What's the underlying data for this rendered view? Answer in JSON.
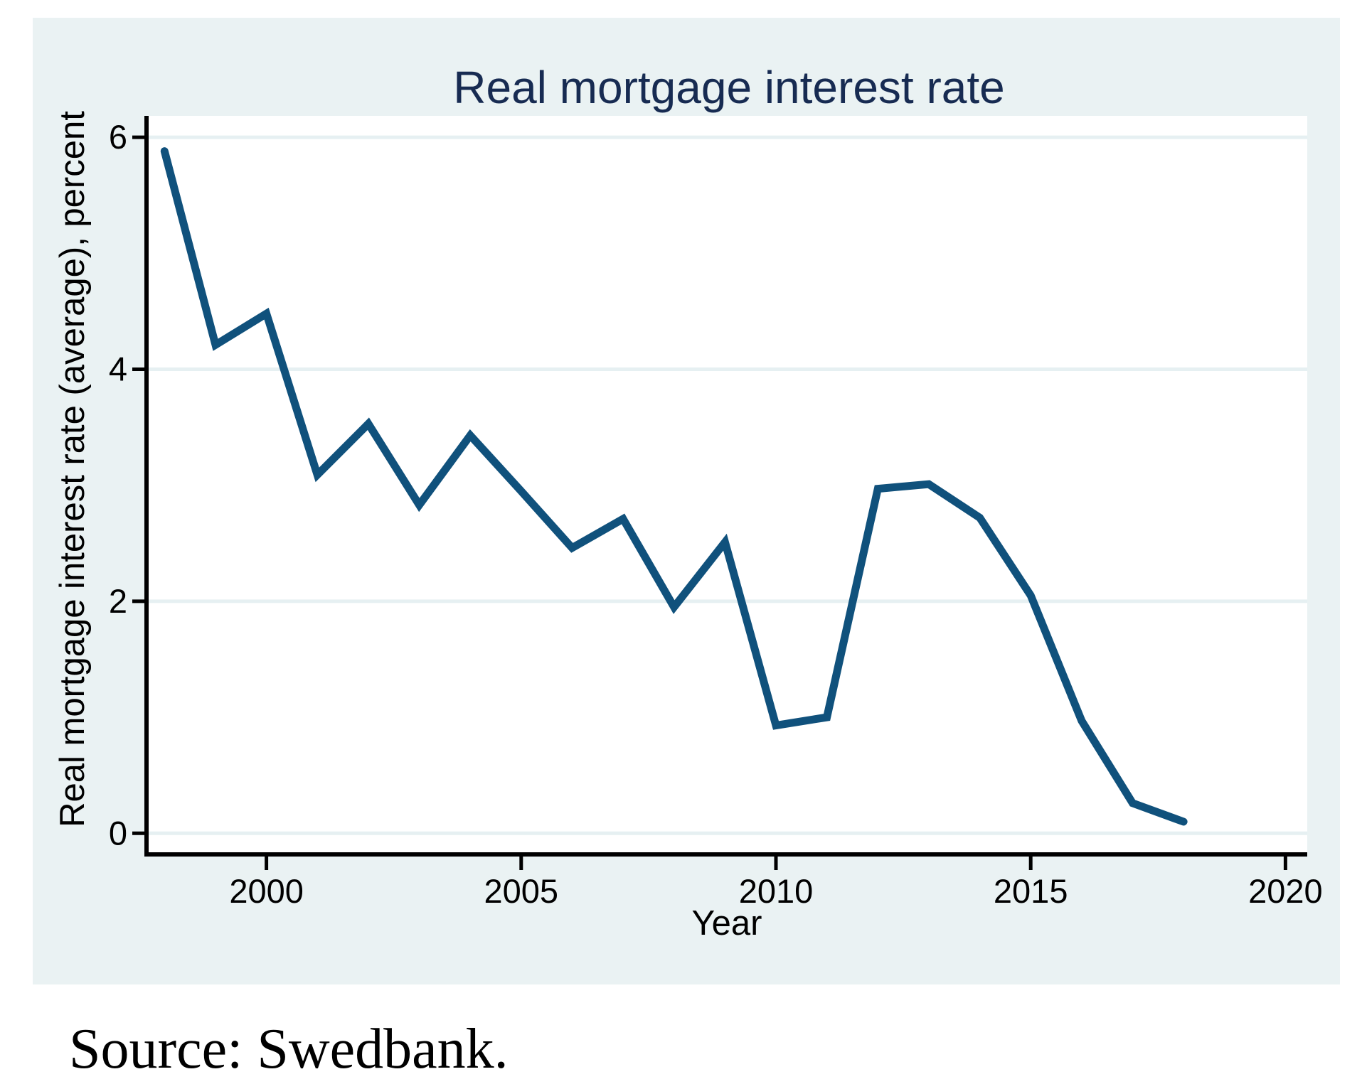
{
  "title": "Real mortgage interest rate",
  "source_note": "Source: Swedbank.",
  "colors": {
    "graph_background": "#EAF2F3",
    "plot_background": "#FFFFFF",
    "gridline": "#E6F0F2",
    "line": "#10517C",
    "title": "#172B52",
    "axis": "#000000"
  },
  "chart_data": {
    "type": "line",
    "title": "Real mortgage interest rate",
    "xlabel": "Year",
    "ylabel": "Real mortgage interest rate (average), percent",
    "x": [
      1998,
      1999,
      2000,
      2001,
      2002,
      2003,
      2004,
      2005,
      2006,
      2007,
      2008,
      2009,
      2010,
      2011,
      2012,
      2013,
      2014,
      2015,
      2016,
      2017,
      2018
    ],
    "values": [
      5.88,
      4.21,
      4.48,
      3.09,
      3.53,
      2.83,
      3.43,
      2.95,
      2.46,
      2.71,
      1.95,
      2.51,
      0.93,
      1.0,
      2.97,
      3.01,
      2.72,
      2.05,
      0.97,
      0.26,
      0.1
    ],
    "series_name": "Real mortgage interest rate (average), percent",
    "xticks": [
      2000,
      2005,
      2010,
      2015,
      2020
    ],
    "yticks": [
      0,
      2,
      4,
      6
    ],
    "xlim": [
      1997.6,
      2020.4
    ],
    "ylim": [
      -0.19,
      6.19
    ],
    "grid": "horizontal",
    "legend": "none"
  }
}
